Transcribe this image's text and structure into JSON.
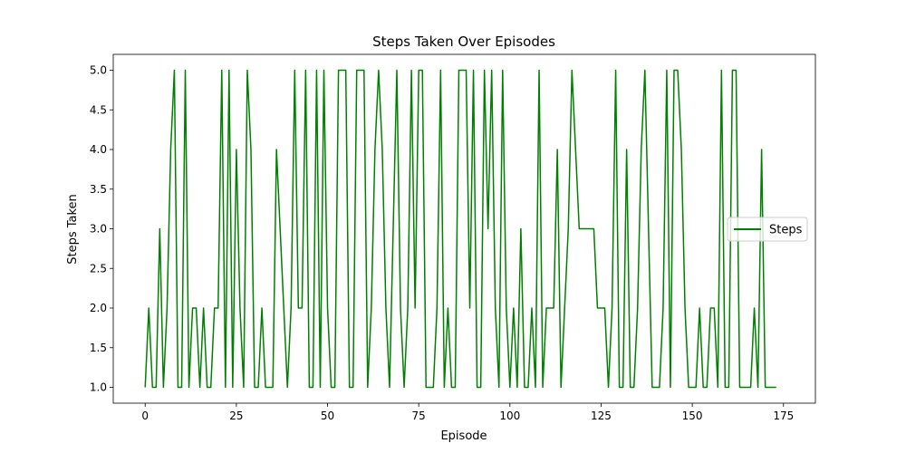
{
  "chart_data": {
    "type": "line",
    "title": "Steps Taken Over Episodes",
    "xlabel": "Episode",
    "ylabel": "Steps Taken",
    "xlim": [
      -8.75,
      183.75
    ],
    "ylim": [
      0.8,
      5.2
    ],
    "xticks": [
      0,
      25,
      50,
      75,
      100,
      125,
      150,
      175
    ],
    "xtick_labels": [
      "0",
      "25",
      "50",
      "75",
      "100",
      "125",
      "150",
      "175"
    ],
    "yticks": [
      1.0,
      1.5,
      2.0,
      2.5,
      3.0,
      3.5,
      4.0,
      4.5,
      5.0
    ],
    "ytick_labels": [
      "1.0",
      "1.5",
      "2.0",
      "2.5",
      "3.0",
      "3.5",
      "4.0",
      "4.5",
      "5.0"
    ],
    "grid": false,
    "legend_position": "center-right",
    "series": [
      {
        "name": "Steps",
        "color": "#008000",
        "values": [
          1,
          2,
          1,
          1,
          3,
          1,
          2,
          4,
          5,
          1,
          1,
          5,
          1,
          2,
          2,
          1,
          2,
          1,
          1,
          2,
          2,
          5,
          1,
          5,
          1,
          4,
          2,
          1,
          5,
          4,
          1,
          1,
          2,
          1,
          1,
          1,
          4,
          3,
          2,
          1,
          2,
          5,
          2,
          2,
          5,
          1,
          1,
          5,
          1,
          5,
          2,
          1,
          1,
          5,
          5,
          5,
          1,
          1,
          5,
          5,
          5,
          1,
          2,
          4,
          5,
          4,
          2,
          1,
          3,
          5,
          2,
          1,
          2,
          5,
          2,
          5,
          5,
          1,
          1,
          1,
          2,
          5,
          1,
          2,
          1,
          1,
          5,
          5,
          5,
          2,
          5,
          1,
          1,
          5,
          3,
          5,
          2,
          1,
          5,
          2,
          1,
          2,
          1,
          3,
          1,
          1,
          2,
          1,
          5,
          1,
          2,
          2,
          2,
          4,
          1,
          2,
          3,
          5,
          4,
          3,
          3,
          3,
          3,
          3,
          2,
          2,
          2,
          1,
          2,
          5,
          1,
          1,
          4,
          1,
          1,
          2,
          4,
          5,
          3,
          1,
          1,
          1,
          2,
          5,
          1,
          5,
          5,
          4,
          2,
          1,
          1,
          1,
          2,
          1,
          1,
          2,
          2,
          1,
          5,
          1,
          1,
          5,
          5,
          1,
          1,
          1,
          1,
          2,
          1,
          4,
          1,
          1,
          1,
          1
        ]
      }
    ]
  }
}
